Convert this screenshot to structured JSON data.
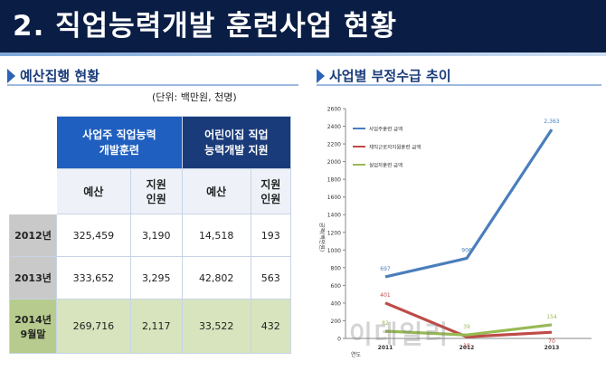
{
  "title": "2. 직업능력개발 훈련사업 현황",
  "left_section": {
    "heading": "예산집행 현황",
    "unit_note": "(단위: 백만원, 천명)",
    "table": {
      "group_headers": [
        "사업주 직업능력\n개발훈련",
        "어린이집 직업\n능력개발 지원"
      ],
      "sub_headers": [
        "예산",
        "지원\n인원",
        "예산",
        "지원\n인원"
      ],
      "rows": [
        {
          "label": "2012년",
          "cells": [
            "325,459",
            "3,190",
            "14,518",
            "193"
          ]
        },
        {
          "label": "2013년",
          "cells": [
            "333,652",
            "3,295",
            "42,802",
            "563"
          ]
        },
        {
          "label": "2014년\n9월말",
          "cells": [
            "269,716",
            "2,117",
            "33,522",
            "432"
          ]
        }
      ]
    }
  },
  "right_section": {
    "heading": "사업별 부정수급 추이"
  },
  "chart_data": {
    "type": "line",
    "x": [
      "2011",
      "2012",
      "2013"
    ],
    "xlabel": "연도",
    "ylabel": "금액(백만원)",
    "ylim": [
      0,
      2600
    ],
    "yticks": [
      0,
      200,
      400,
      600,
      800,
      1000,
      1200,
      1400,
      1600,
      1800,
      2000,
      2200,
      2400,
      2600
    ],
    "grid": false,
    "legend_position": "top-left",
    "series": [
      {
        "name": "사업주훈련 금액",
        "color": "#4a7ebb",
        "values": [
          697,
          906,
          2363
        ],
        "labels": [
          "697",
          "906",
          "2,363"
        ]
      },
      {
        "name": "재직근로자지원훈련 금액",
        "color": "#be4b48",
        "values": [
          401,
          18,
          70
        ],
        "labels": [
          "401",
          "18",
          "70"
        ]
      },
      {
        "name": "실업자훈련 금액",
        "color": "#98b954",
        "values": [
          82,
          39,
          154
        ],
        "labels": [
          "82",
          "39",
          "154"
        ]
      }
    ]
  },
  "watermark": "이데일리"
}
